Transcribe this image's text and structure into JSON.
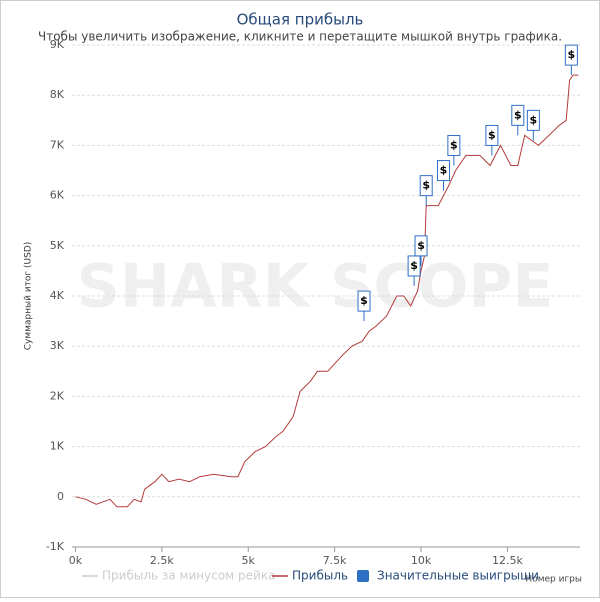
{
  "chart_data": {
    "type": "line",
    "title": "Общая прибыль",
    "subtitle": "Чтобы увеличить изображение, кликните и перетащите мышкой внутрь графика.",
    "y_label": "Суммарный итог (USD)",
    "x_label": "Номер игры",
    "watermark": "SHARK SCOPE",
    "xlim": [
      -100,
      14600
    ],
    "xticks": [
      {
        "value": 0,
        "label": "0k"
      },
      {
        "value": 2500,
        "label": "2.5k"
      },
      {
        "value": 5000,
        "label": "5k"
      },
      {
        "value": 7500,
        "label": "7.5k"
      },
      {
        "value": 10000,
        "label": "10k"
      },
      {
        "value": 12500,
        "label": "12.5k"
      }
    ],
    "ylim": [
      -1000,
      9000
    ],
    "yticks": [
      {
        "value": -1000,
        "label": "-1K"
      },
      0,
      {
        "value": 1000,
        "label": "1K"
      },
      {
        "value": 2000,
        "label": "2K"
      },
      {
        "value": 3000,
        "label": "3K"
      },
      {
        "value": 4000,
        "label": "4K"
      },
      {
        "value": 5000,
        "label": "5K"
      },
      {
        "value": 6000,
        "label": "6K"
      },
      {
        "value": 7000,
        "label": "7K"
      },
      {
        "value": 8000,
        "label": "8K"
      },
      {
        "value": 9000,
        "label": "9K"
      }
    ],
    "grid": true,
    "series": [
      {
        "name": "Прибыль за минусом рейка",
        "color": "#cccccc",
        "visible": false
      },
      {
        "name": "Прибыль",
        "color": "#b23b3b",
        "visible": true,
        "x": [
          0,
          300,
          600,
          800,
          1000,
          1200,
          1500,
          1700,
          1900,
          2000,
          2300,
          2500,
          2700,
          3000,
          3300,
          3600,
          4000,
          4500,
          4700,
          4900,
          5200,
          5500,
          5800,
          6000,
          6300,
          6500,
          6800,
          7000,
          7300,
          7700,
          8000,
          8300,
          8500,
          8700,
          9000,
          9300,
          9500,
          9700,
          9900,
          10000,
          10100,
          10150,
          10500,
          10800,
          11000,
          11300,
          11700,
          12000,
          12300,
          12600,
          12800,
          13000,
          13400,
          13700,
          14000,
          14200,
          14300,
          14400,
          14550
        ],
        "values": [
          0,
          -50,
          -150,
          -100,
          -50,
          -200,
          -200,
          -50,
          -100,
          150,
          300,
          450,
          300,
          350,
          300,
          400,
          450,
          400,
          400,
          700,
          900,
          1000,
          1200,
          1300,
          1600,
          2100,
          2300,
          2500,
          2500,
          2800,
          3000,
          3100,
          3300,
          3400,
          3600,
          4000,
          4000,
          3800,
          4100,
          4500,
          4800,
          5800,
          5800,
          6200,
          6500,
          6800,
          6800,
          6600,
          7000,
          6600,
          6600,
          7200,
          7000,
          7200,
          7400,
          7500,
          8300,
          8400,
          8400
        ]
      },
      {
        "name": "Значительные выигрыши",
        "color": "#2f6fc4",
        "visible": true,
        "flag_text": "$",
        "x": [
          8350,
          9800,
          10000,
          10150,
          10650,
          10950,
          12050,
          12800,
          13250,
          14350
        ],
        "values": [
          3500,
          4200,
          4600,
          5800,
          6100,
          6600,
          6800,
          7200,
          7100,
          8400
        ]
      }
    ]
  }
}
